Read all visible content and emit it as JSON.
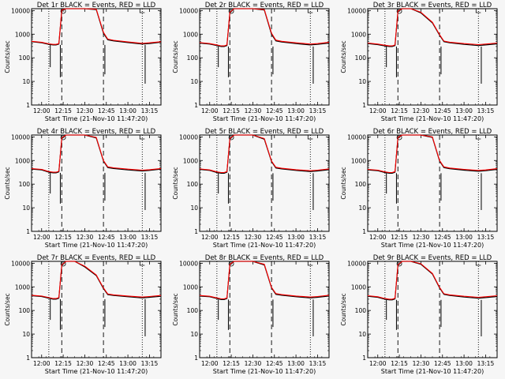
{
  "figure": {
    "xlabel": "Start Time (21-Nov-10 11:47:20)",
    "ylabel": "Counts/sec",
    "x_tick_labels": [
      "12:00",
      "12:15",
      "12:30",
      "12:45",
      "13:00",
      "13:15"
    ],
    "y_tick_labels": [
      "1",
      "10",
      "100",
      "1000",
      "10000"
    ],
    "colors": {
      "events": "#000000",
      "lld": "#ff0000",
      "background": "#f6f6f6"
    }
  },
  "chart_data": [
    {
      "type": "line",
      "title": "Det 1r BLACK = Events, RED = LLD",
      "xlabel": "Start Time (21-Nov-10 11:47:20)",
      "ylabel": "Counts/sec",
      "yscale": "log",
      "ylim": [
        1,
        12000
      ],
      "xlim": [
        "11:53",
        "13:23"
      ],
      "x": [
        "11:53",
        "12:00",
        "12:05",
        "12:08",
        "12:10",
        "12:12",
        "12:14",
        "12:17",
        "12:23",
        "12:30",
        "12:38",
        "12:43",
        "12:46",
        "12:50",
        "13:00",
        "13:10",
        "13:15",
        "13:23"
      ],
      "series": [
        {
          "name": "BLACK = Events",
          "values": [
            480,
            430,
            370,
            350,
            350,
            380,
            10000,
            12000,
            12000,
            12000,
            11000,
            1100,
            580,
            520,
            440,
            380,
            400,
            460
          ]
        },
        {
          "name": "RED = LLD",
          "values": [
            500,
            450,
            390,
            370,
            370,
            400,
            10500,
            12000,
            12000,
            12000,
            11500,
            1200,
            620,
            550,
            470,
            410,
            430,
            480
          ]
        }
      ]
    },
    {
      "type": "line",
      "title": "Det 2r BLACK = Events, RED = LLD",
      "xlabel": "Start Time (21-Nov-10 11:47:20)",
      "ylabel": "Counts/sec",
      "yscale": "log",
      "ylim": [
        1,
        12000
      ],
      "xlim": [
        "11:53",
        "13:23"
      ],
      "x": [
        "11:53",
        "12:00",
        "12:05",
        "12:08",
        "12:10",
        "12:12",
        "12:14",
        "12:17",
        "12:23",
        "12:30",
        "12:38",
        "12:43",
        "12:46",
        "12:50",
        "13:00",
        "13:10",
        "13:15",
        "13:23"
      ],
      "series": [
        {
          "name": "BLACK = Events",
          "values": [
            420,
            380,
            330,
            300,
            300,
            330,
            8000,
            12000,
            12000,
            12000,
            10500,
            1000,
            520,
            470,
            400,
            350,
            370,
            420
          ]
        },
        {
          "name": "RED = LLD",
          "values": [
            440,
            400,
            350,
            320,
            320,
            350,
            8500,
            12000,
            12000,
            12000,
            11000,
            1100,
            560,
            500,
            430,
            380,
            400,
            450
          ]
        }
      ]
    },
    {
      "type": "line",
      "title": "Det 3r BLACK = Events, RED = LLD",
      "xlabel": "Start Time (21-Nov-10 11:47:20)",
      "ylabel": "Counts/sec",
      "yscale": "log",
      "ylim": [
        1,
        12000
      ],
      "xlim": [
        "11:53",
        "13:23"
      ],
      "x": [
        "11:53",
        "12:00",
        "12:05",
        "12:08",
        "12:10",
        "12:12",
        "12:14",
        "12:17",
        "12:23",
        "12:30",
        "12:38",
        "12:43",
        "12:46",
        "12:50",
        "13:00",
        "13:10",
        "13:15",
        "13:23"
      ],
      "series": [
        {
          "name": "BLACK = Events",
          "values": [
            400,
            360,
            320,
            300,
            300,
            330,
            9000,
            12000,
            12000,
            8000,
            3000,
            900,
            480,
            430,
            370,
            330,
            350,
            390
          ]
        },
        {
          "name": "RED = LLD",
          "values": [
            420,
            380,
            340,
            320,
            320,
            350,
            9500,
            12000,
            12000,
            8500,
            3200,
            950,
            510,
            460,
            400,
            360,
            380,
            420
          ]
        }
      ]
    },
    {
      "type": "line",
      "title": "Det 4r BLACK = Events, RED = LLD",
      "xlabel": "Start Time (21-Nov-10 11:47:20)",
      "ylabel": "Counts/sec",
      "yscale": "log",
      "ylim": [
        1,
        12000
      ],
      "xlim": [
        "11:53",
        "13:23"
      ],
      "x": [
        "11:53",
        "12:00",
        "12:05",
        "12:08",
        "12:10",
        "12:12",
        "12:14",
        "12:17",
        "12:23",
        "12:30",
        "12:38",
        "12:43",
        "12:46",
        "12:50",
        "13:00",
        "13:10",
        "13:15",
        "13:23"
      ],
      "series": [
        {
          "name": "BLACK = Events",
          "values": [
            430,
            400,
            320,
            300,
            300,
            330,
            8500,
            12000,
            12000,
            12000,
            9000,
            950,
            500,
            460,
            400,
            360,
            380,
            430
          ]
        },
        {
          "name": "RED = LLD",
          "values": [
            450,
            420,
            340,
            320,
            320,
            350,
            9000,
            12000,
            12000,
            12000,
            9500,
            1000,
            540,
            490,
            430,
            390,
            410,
            460
          ]
        }
      ]
    },
    {
      "type": "line",
      "title": "Det 5r BLACK = Events, RED = LLD",
      "xlabel": "Start Time (21-Nov-10 11:47:20)",
      "ylabel": "Counts/sec",
      "yscale": "log",
      "ylim": [
        1,
        12000
      ],
      "xlim": [
        "11:53",
        "13:23"
      ],
      "x": [
        "11:53",
        "12:00",
        "12:05",
        "12:08",
        "12:10",
        "12:12",
        "12:14",
        "12:17",
        "12:23",
        "12:30",
        "12:38",
        "12:43",
        "12:46",
        "12:50",
        "13:00",
        "13:10",
        "13:15",
        "13:23"
      ],
      "series": [
        {
          "name": "BLACK = Events",
          "values": [
            420,
            380,
            310,
            290,
            290,
            320,
            8000,
            12000,
            12000,
            12000,
            8000,
            900,
            480,
            440,
            380,
            340,
            360,
            410
          ]
        },
        {
          "name": "RED = LLD",
          "values": [
            440,
            400,
            330,
            310,
            310,
            340,
            8500,
            12000,
            12000,
            12000,
            8500,
            950,
            520,
            470,
            410,
            370,
            390,
            440
          ]
        }
      ]
    },
    {
      "type": "line",
      "title": "Det 6r BLACK = Events, RED = LLD",
      "xlabel": "Start Time (21-Nov-10 11:47:20)",
      "ylabel": "Counts/sec",
      "yscale": "log",
      "ylim": [
        1,
        12000
      ],
      "xlim": [
        "11:53",
        "13:23"
      ],
      "x": [
        "11:53",
        "12:00",
        "12:05",
        "12:08",
        "12:10",
        "12:12",
        "12:14",
        "12:17",
        "12:23",
        "12:30",
        "12:38",
        "12:43",
        "12:46",
        "12:50",
        "13:00",
        "13:10",
        "13:15",
        "13:23"
      ],
      "series": [
        {
          "name": "BLACK = Events",
          "values": [
            400,
            370,
            310,
            290,
            290,
            320,
            9000,
            12000,
            12000,
            12000,
            9500,
            950,
            500,
            450,
            390,
            350,
            370,
            420
          ]
        },
        {
          "name": "RED = LLD",
          "values": [
            420,
            390,
            330,
            310,
            310,
            340,
            9500,
            12000,
            12000,
            12000,
            10000,
            1000,
            540,
            480,
            420,
            380,
            400,
            450
          ]
        }
      ]
    },
    {
      "type": "line",
      "title": "Det 7r BLACK = Events, RED = LLD",
      "xlabel": "Start Time (21-Nov-10 11:47:20)",
      "ylabel": "Counts/sec",
      "yscale": "log",
      "ylim": [
        1,
        12000
      ],
      "xlim": [
        "11:53",
        "13:23"
      ],
      "x": [
        "11:53",
        "12:00",
        "12:05",
        "12:08",
        "12:10",
        "12:12",
        "12:14",
        "12:17",
        "12:23",
        "12:30",
        "12:38",
        "12:43",
        "12:46",
        "12:50",
        "13:00",
        "13:10",
        "13:15",
        "13:23"
      ],
      "series": [
        {
          "name": "BLACK = Events",
          "values": [
            420,
            390,
            330,
            300,
            300,
            330,
            8000,
            12000,
            12000,
            7000,
            3000,
            850,
            470,
            430,
            380,
            340,
            360,
            400
          ]
        },
        {
          "name": "RED = LLD",
          "values": [
            440,
            410,
            350,
            320,
            320,
            350,
            8500,
            12000,
            12000,
            7500,
            3200,
            900,
            500,
            460,
            410,
            370,
            390,
            430
          ]
        }
      ]
    },
    {
      "type": "line",
      "title": "Det 8r BLACK = Events, RED = LLD",
      "xlabel": "Start Time (21-Nov-10 11:47:20)",
      "ylabel": "Counts/sec",
      "yscale": "log",
      "ylim": [
        1,
        12000
      ],
      "xlim": [
        "11:53",
        "13:23"
      ],
      "x": [
        "11:53",
        "12:00",
        "12:05",
        "12:08",
        "12:10",
        "12:12",
        "12:14",
        "12:17",
        "12:23",
        "12:30",
        "12:38",
        "12:43",
        "12:46",
        "12:50",
        "13:00",
        "13:10",
        "13:15",
        "13:23"
      ],
      "series": [
        {
          "name": "BLACK = Events",
          "values": [
            410,
            380,
            320,
            290,
            290,
            320,
            8500,
            12000,
            12000,
            12000,
            8500,
            900,
            480,
            440,
            380,
            340,
            360,
            410
          ]
        },
        {
          "name": "RED = LLD",
          "values": [
            430,
            400,
            340,
            310,
            310,
            340,
            9000,
            12000,
            12000,
            12000,
            9000,
            950,
            520,
            470,
            410,
            370,
            390,
            440
          ]
        }
      ]
    },
    {
      "type": "line",
      "title": "Det 9r BLACK = Events, RED = LLD",
      "xlabel": "Start Time (21-Nov-10 11:47:20)",
      "ylabel": "Counts/sec",
      "yscale": "log",
      "ylim": [
        1,
        12000
      ],
      "xlim": [
        "11:53",
        "13:23"
      ],
      "x": [
        "11:53",
        "12:00",
        "12:05",
        "12:08",
        "12:10",
        "12:12",
        "12:14",
        "12:17",
        "12:23",
        "12:30",
        "12:38",
        "12:43",
        "12:46",
        "12:50",
        "13:00",
        "13:10",
        "13:15",
        "13:23"
      ],
      "series": [
        {
          "name": "BLACK = Events",
          "values": [
            400,
            360,
            300,
            280,
            280,
            310,
            8000,
            12000,
            12000,
            9000,
            3500,
            900,
            480,
            430,
            370,
            330,
            350,
            390
          ]
        },
        {
          "name": "RED = LLD",
          "values": [
            420,
            380,
            320,
            300,
            300,
            330,
            8500,
            12000,
            12000,
            9500,
            3700,
            950,
            510,
            460,
            400,
            360,
            380,
            420
          ]
        }
      ]
    }
  ]
}
